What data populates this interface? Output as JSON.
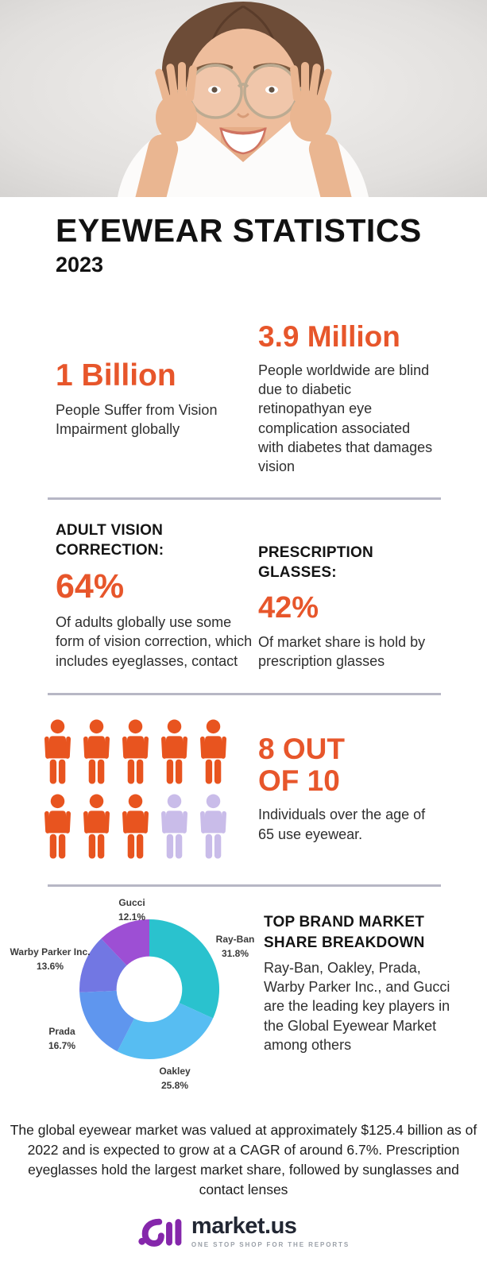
{
  "page": {
    "title": "EYEWEAR STATISTICS",
    "year": "2023"
  },
  "colors": {
    "accent_orange": "#e7562b",
    "icon_orange": "#e8541f",
    "icon_lavender": "#c9bce9",
    "divider_gray": "#b7b7c5",
    "logo_purple": "#8527ab"
  },
  "stats": [
    {
      "value": "1 Billion",
      "caption": "People Suffer from Vision Impairment globally"
    },
    {
      "value": "3.9 Million",
      "caption": "People worldwide are blind due to diabetic retinopathyan eye complication associated with diabetes that damages vision"
    }
  ],
  "vision_correction": {
    "heading": "ADULT VISION CORRECTION:",
    "value": "64%",
    "caption": "Of adults globally use some form of vision correction, which includes eyeglasses, contact"
  },
  "prescription": {
    "heading": "PRESCRIPTION GLASSES:",
    "value": "42%",
    "caption": "Of market share is hold by prescription glasses"
  },
  "pictogram": {
    "stat_line1": "8 OUT",
    "stat_line2": "OF 10",
    "caption": "Individuals over the age of 65 use eyewear.",
    "total": 10,
    "highlighted": 8,
    "highlight_color": "#e8541f",
    "muted_color": "#c9bce9"
  },
  "brands": {
    "heading": "TOP BRAND MARKET SHARE BREAKDOWN",
    "caption": "Ray-Ban, Oakley, Prada, Warby Parker Inc., and Gucci are the leading key players in the Global Eyewear Market among others"
  },
  "chart_data": {
    "type": "pie",
    "subtype": "donut",
    "start_angle_deg": 0,
    "direction": "clockwise",
    "inner_radius_ratio": 0.47,
    "slices": [
      {
        "label": "Ray-Ban",
        "value": 31.8,
        "color": "#2ac2ce"
      },
      {
        "label": "Oakley",
        "value": 25.8,
        "color": "#57bdf2"
      },
      {
        "label": "Prada",
        "value": 16.7,
        "color": "#5f96ee"
      },
      {
        "label": "Warby Parker Inc.",
        "value": 13.6,
        "color": "#7277e3"
      },
      {
        "label": "Gucci",
        "value": 12.1,
        "color": "#9d4fd4"
      }
    ]
  },
  "footer": {
    "note": "The global eyewear market was valued at approximately $125.4 billion as of 2022 and is expected to grow at a CAGR of around 6.7%. Prescription eyeglasses hold the largest market share, followed by sunglasses and contact lenses",
    "logo_name": "market.us",
    "logo_tagline": "ONE STOP SHOP FOR THE REPORTS"
  }
}
